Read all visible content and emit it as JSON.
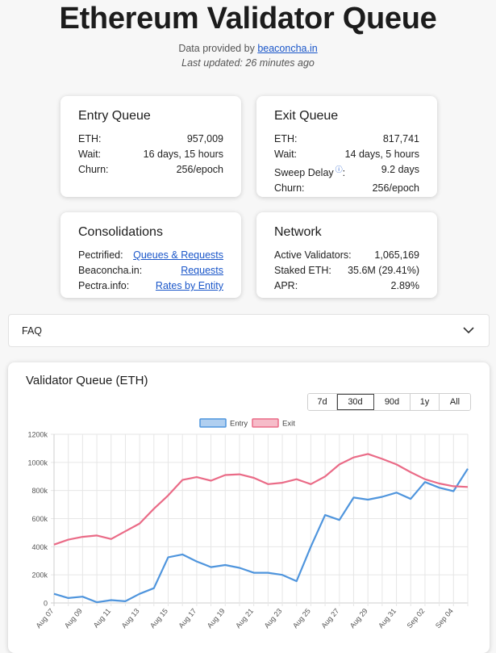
{
  "header": {
    "title": "Ethereum Validator Queue",
    "provided_prefix": "Data provided by",
    "provider_link": "beaconcha.in",
    "last_updated": "Last updated: 26 minutes ago"
  },
  "entry_queue": {
    "title": "Entry Queue",
    "rows": [
      {
        "label": "ETH:",
        "value": "957,009"
      },
      {
        "label": "Wait:",
        "value": "16 days, 15 hours"
      },
      {
        "label": "Churn:",
        "value": "256/epoch"
      }
    ]
  },
  "exit_queue": {
    "title": "Exit Queue",
    "rows": [
      {
        "label": "ETH:",
        "value": "817,741"
      },
      {
        "label": "Wait:",
        "value": "14 days, 5 hours"
      },
      {
        "label": "Sweep Delay",
        "value": "9.2 days"
      },
      {
        "label": "Churn:",
        "value": "256/epoch"
      }
    ],
    "sweep_suffix": ":"
  },
  "consolidations": {
    "title": "Consolidations",
    "rows": [
      {
        "label": "Pectrified:",
        "link": "Queues & Requests"
      },
      {
        "label": "Beaconcha.in:",
        "link": "Requests"
      },
      {
        "label": "Pectra.info:",
        "link": "Rates by Entity"
      }
    ]
  },
  "network": {
    "title": "Network",
    "rows": [
      {
        "label": "Active Validators:",
        "value": "1,065,169"
      },
      {
        "label": "Staked ETH:",
        "value": "35.6M (29.41%)"
      },
      {
        "label": "APR:",
        "value": "2.89%"
      }
    ]
  },
  "faq": {
    "label": "FAQ"
  },
  "chart": {
    "title": "Validator Queue (ETH)",
    "ranges": [
      "7d",
      "30d",
      "90d",
      "1y",
      "All"
    ],
    "active_range": "30d"
  },
  "colors": {
    "entry": "#4f95dd",
    "exit": "#ea6b87",
    "link": "#1a56c9"
  },
  "chart_data": {
    "type": "line",
    "x": [
      "Aug 07",
      "Aug 08",
      "Aug 09",
      "Aug 10",
      "Aug 11",
      "Aug 12",
      "Aug 13",
      "Aug 14",
      "Aug 15",
      "Aug 16",
      "Aug 17",
      "Aug 18",
      "Aug 19",
      "Aug 20",
      "Aug 21",
      "Aug 22",
      "Aug 23",
      "Aug 24",
      "Aug 25",
      "Aug 26",
      "Aug 27",
      "Aug 28",
      "Aug 29",
      "Aug 30",
      "Aug 31",
      "Sep 01",
      "Sep 02",
      "Sep 03",
      "Sep 04",
      "Sep 05"
    ],
    "x_tick_labels": [
      "Aug 07",
      "Aug 09",
      "Aug 11",
      "Aug 13",
      "Aug 15",
      "Aug 17",
      "Aug 19",
      "Aug 21",
      "Aug 23",
      "Aug 25",
      "Aug 27",
      "Aug 29",
      "Aug 31",
      "Sep 02",
      "Sep 04"
    ],
    "series": [
      {
        "name": "Entry",
        "values": [
          65000,
          35000,
          45000,
          5000,
          20000,
          12000,
          65000,
          105000,
          325000,
          345000,
          295000,
          255000,
          270000,
          250000,
          215000,
          215000,
          200000,
          155000,
          400000,
          625000,
          590000,
          750000,
          735000,
          755000,
          785000,
          740000,
          860000,
          820000,
          795000,
          955000
        ]
      },
      {
        "name": "Exit",
        "values": [
          415000,
          450000,
          470000,
          480000,
          455000,
          510000,
          565000,
          670000,
          765000,
          875000,
          895000,
          870000,
          910000,
          915000,
          890000,
          845000,
          855000,
          880000,
          845000,
          900000,
          985000,
          1035000,
          1060000,
          1025000,
          985000,
          930000,
          880000,
          850000,
          830000,
          825000
        ]
      }
    ],
    "y_ticks": [
      "0",
      "200k",
      "400k",
      "600k",
      "800k",
      "1000k",
      "1200k"
    ],
    "ylim": [
      0,
      1200000
    ],
    "legend_position": "top-center",
    "grid": true
  }
}
